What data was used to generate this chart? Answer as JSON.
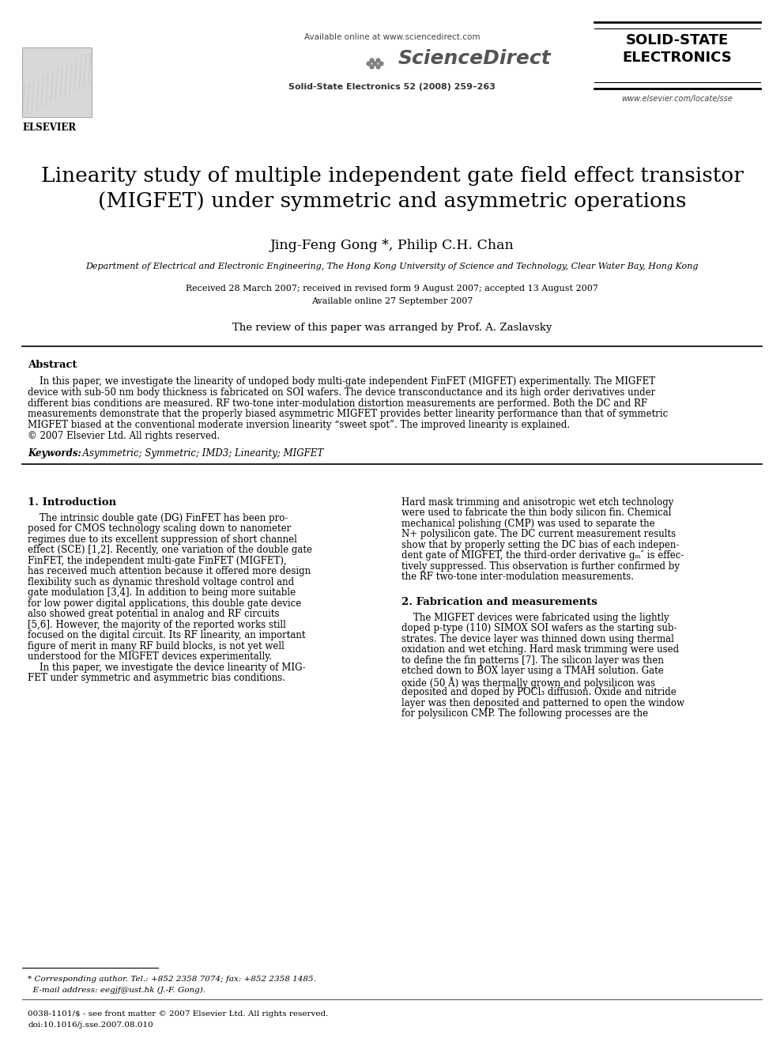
{
  "bg_color": "#ffffff",
  "header": {
    "available_online": "Available online at www.sciencedirect.com",
    "journal_name": "ScienceDirect",
    "journal_ref": "Solid-State Electronics 52 (2008) 259–263",
    "journal_title_line1": "SOLID-STATE",
    "journal_title_line2": "ELECTRONICS",
    "journal_url": "www.elsevier.com/locate/sse",
    "publisher": "ELSEVIER"
  },
  "title_line1": "Linearity study of multiple independent gate field effect transistor",
  "title_line2": "(MIGFET) under symmetric and asymmetric operations",
  "authors": "Jing-Feng Gong *, Philip C.H. Chan",
  "affiliation": "Department of Electrical and Electronic Engineering, The Hong Kong University of Science and Technology, Clear Water Bay, Hong Kong",
  "received": "Received 28 March 2007; received in revised form 9 August 2007; accepted 13 August 2007",
  "available": "Available online 27 September 2007",
  "reviewer": "The review of this paper was arranged by Prof. A. Zaslavsky",
  "abstract_title": "Abstract",
  "keywords_label": "Keywords:",
  "keywords_text": "  Asymmetric; Symmetric; IMD3; Linearity; MIGFET",
  "section1_title": "1. Introduction",
  "section2_title": "2. Fabrication and measurements",
  "footnote_line1": "* Corresponding author. Tel.: +852 2358 7074; fax: +852 2358 1485.",
  "footnote_line2": "  E-mail address: eegjf@ust.hk (J.-F. Gong).",
  "copyright_line1": "0038-1101/$ - see front matter © 2007 Elsevier Ltd. All rights reserved.",
  "copyright_line2": "doi:10.1016/j.sse.2007.08.010",
  "abstract_lines": [
    "    In this paper, we investigate the linearity of undoped body multi-gate independent FinFET (MIGFET) experimentally. The MIGFET",
    "device with sub-50 nm body thickness is fabricated on SOI wafers. The device transconductance and its high order derivatives under",
    "different bias conditions are measured. RF two-tone inter-modulation distortion measurements are performed. Both the DC and RF",
    "measurements demonstrate that the properly biased asymmetric MIGFET provides better linearity performance than that of symmetric",
    "MIGFET biased at the conventional moderate inversion linearity “sweet spot”. The improved linearity is explained.",
    "© 2007 Elsevier Ltd. All rights reserved."
  ],
  "col1_intro_lines": [
    "    The intrinsic double gate (DG) FinFET has been pro-",
    "posed for CMOS technology scaling down to nanometer",
    "regimes due to its excellent suppression of short channel",
    "effect (SCE) [1,2]. Recently, one variation of the double gate",
    "FinFET, the independent multi-gate FinFET (MIGFET),",
    "has received much attention because it offered more design",
    "flexibility such as dynamic threshold voltage control and",
    "gate modulation [3,4]. In addition to being more suitable",
    "for low power digital applications, this double gate device",
    "also showed great potential in analog and RF circuits",
    "[5,6]. However, the majority of the reported works still",
    "focused on the digital circuit. Its RF linearity, an important",
    "figure of merit in many RF build blocks, is not yet well",
    "understood for the MIGFET devices experimentally.",
    "    In this paper, we investigate the device linearity of MIG-",
    "FET under symmetric and asymmetric bias conditions."
  ],
  "col2_intro_lines": [
    "Hard mask trimming and anisotropic wet etch technology",
    "were used to fabricate the thin body silicon fin. Chemical",
    "mechanical polishing (CMP) was used to separate the",
    "N+ polysilicon gate. The DC current measurement results",
    "show that by properly setting the DC bias of each indepen-",
    "dent gate of MIGFET, the third-order derivative gₘ″ is effec-",
    "tively suppressed. This observation is further confirmed by",
    "the RF two-tone inter-modulation measurements."
  ],
  "col2_fab_lines": [
    "    The MIGFET devices were fabricated using the lightly",
    "doped p-type (110) SIMOX SOI wafers as the starting sub-",
    "strates. The device layer was thinned down using thermal",
    "oxidation and wet etching. Hard mask trimming were used",
    "to define the fin patterns [7]. The silicon layer was then",
    "etched down to BOX layer using a TMAH solution. Gate",
    "oxide (50 Å) was thermally grown and polysilicon was",
    "deposited and doped by POCl₃ diffusion. Oxide and nitride",
    "layer was then deposited and patterned to open the window",
    "for polysilicon CMP. The following processes are the"
  ]
}
